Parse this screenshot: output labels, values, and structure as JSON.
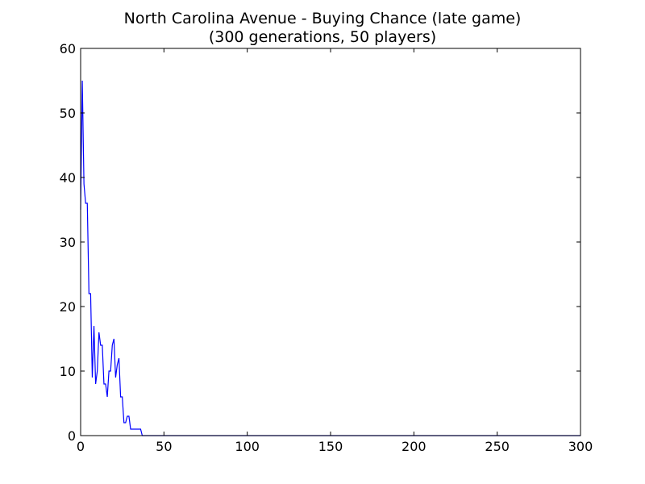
{
  "chart_data": {
    "type": "line",
    "title_line1": "North Carolina Avenue - Buying Chance (late game)",
    "title_line2": "(300 generations, 50 players)",
    "xlabel": "",
    "ylabel": "",
    "xlim": [
      0,
      300
    ],
    "ylim": [
      0,
      60
    ],
    "xticks": [
      0,
      50,
      100,
      150,
      200,
      250,
      300
    ],
    "yticks": [
      0,
      10,
      20,
      30,
      40,
      50,
      60
    ],
    "grid": false,
    "series": [
      {
        "color": "#0000ff",
        "x": [
          0,
          1,
          2,
          3,
          4,
          5,
          6,
          7,
          8,
          9,
          10,
          11,
          12,
          13,
          14,
          15,
          16,
          17,
          18,
          19,
          20,
          21,
          22,
          23,
          24,
          25,
          26,
          27,
          28,
          29,
          30,
          31,
          32,
          33,
          34,
          35,
          36,
          37,
          38,
          39,
          40,
          300
        ],
        "y": [
          35,
          55,
          39,
          36,
          36,
          22,
          22,
          9,
          17,
          8,
          10,
          16,
          14,
          14,
          8,
          8,
          6,
          10,
          10,
          14,
          15,
          9,
          11,
          12,
          6,
          6,
          2,
          2,
          3,
          3,
          1,
          1,
          1,
          1,
          1,
          1,
          1,
          0,
          0,
          0,
          0,
          0
        ]
      }
    ]
  }
}
